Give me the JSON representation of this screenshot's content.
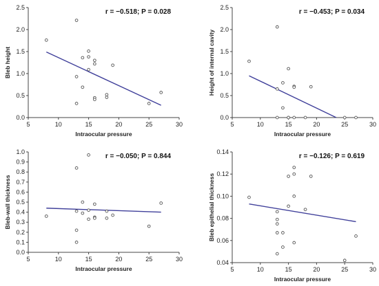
{
  "chart_data": [
    {
      "type": "scatter",
      "stat": "r = −0.518; P = 0.028",
      "xlabel": "Intraocular pressure",
      "ylabel": "Bleb height",
      "xlim": [
        5,
        30
      ],
      "ylim": [
        0,
        2.5
      ],
      "xticks": [
        5,
        10,
        15,
        20,
        25,
        30
      ],
      "yticks": [
        0.0,
        0.5,
        1.0,
        1.5,
        2.0,
        2.5
      ],
      "ytick_labels": [
        "0.0",
        "0.5",
        "1.0",
        "1.5",
        "2.0",
        "2.5"
      ],
      "points": [
        [
          8,
          1.76
        ],
        [
          13,
          2.21
        ],
        [
          13,
          0.93
        ],
        [
          13,
          0.32
        ],
        [
          14,
          1.36
        ],
        [
          14,
          0.69
        ],
        [
          15,
          1.51
        ],
        [
          15,
          1.09
        ],
        [
          15,
          1.38
        ],
        [
          16,
          1.3
        ],
        [
          16,
          1.22
        ],
        [
          16,
          0.45
        ],
        [
          16,
          0.41
        ],
        [
          18,
          0.52
        ],
        [
          18,
          0.46
        ],
        [
          19,
          1.19
        ],
        [
          25,
          0.32
        ],
        [
          27,
          0.57
        ]
      ],
      "fit": [
        [
          8,
          1.49
        ],
        [
          27,
          0.28
        ]
      ]
    },
    {
      "type": "scatter",
      "stat": "r = −0.453; P = 0.034",
      "xlabel": "Intraocular pressure",
      "ylabel": "Height of internal cavity",
      "xlim": [
        5,
        30
      ],
      "ylim": [
        0,
        2.5
      ],
      "xticks": [
        5,
        10,
        15,
        20,
        25,
        30
      ],
      "yticks": [
        0.0,
        0.5,
        1.0,
        1.5,
        2.0,
        2.5
      ],
      "ytick_labels": [
        "0.0",
        "0.5",
        "1.0",
        "1.5",
        "2.0",
        "2.5"
      ],
      "points": [
        [
          8,
          1.28
        ],
        [
          13,
          2.06
        ],
        [
          13,
          0.65
        ],
        [
          13,
          0.0
        ],
        [
          14,
          0.79
        ],
        [
          14,
          0.22
        ],
        [
          15,
          1.11
        ],
        [
          15,
          0.0
        ],
        [
          15,
          0.0
        ],
        [
          16,
          0.71
        ],
        [
          16,
          0.69
        ],
        [
          16,
          0.0
        ],
        [
          18,
          0.0
        ],
        [
          19,
          0.7
        ],
        [
          25,
          0.0
        ],
        [
          27,
          0.0
        ]
      ],
      "fit": [
        [
          8,
          0.95
        ],
        [
          23.5,
          0.0
        ]
      ]
    },
    {
      "type": "scatter",
      "stat": "r = −0.050; P = 0.844",
      "xlabel": "Intraocular pressure",
      "ylabel": "Bleb-wall thickness",
      "xlim": [
        5,
        30
      ],
      "ylim": [
        0,
        1.0
      ],
      "xticks": [
        5,
        10,
        15,
        20,
        25,
        30
      ],
      "yticks": [
        0.0,
        0.1,
        0.2,
        0.3,
        0.4,
        0.5,
        0.6,
        0.7,
        0.8,
        0.9,
        1.0
      ],
      "ytick_labels": [
        "0.0",
        "0.1",
        "0.2",
        "0.3",
        "0.4",
        "0.5",
        "0.6",
        "0.7",
        "0.8",
        "0.9",
        "1.0"
      ],
      "points": [
        [
          8,
          0.36
        ],
        [
          13,
          0.84
        ],
        [
          13,
          0.22
        ],
        [
          13,
          0.1
        ],
        [
          13,
          0.41
        ],
        [
          14,
          0.5
        ],
        [
          14,
          0.39
        ],
        [
          15,
          0.97
        ],
        [
          15,
          0.42
        ],
        [
          15,
          0.33
        ],
        [
          16,
          0.48
        ],
        [
          16,
          0.35
        ],
        [
          16,
          0.34
        ],
        [
          18,
          0.41
        ],
        [
          18,
          0.34
        ],
        [
          19,
          0.37
        ],
        [
          25,
          0.26
        ],
        [
          27,
          0.49
        ]
      ],
      "fit": [
        [
          8,
          0.44
        ],
        [
          27,
          0.4
        ]
      ]
    },
    {
      "type": "scatter",
      "stat": "r = −0.126; P = 0.619",
      "xlabel": "Intraocular pressure",
      "ylabel": "Bleb epithelial thickness",
      "xlim": [
        5,
        30
      ],
      "ylim": [
        0.04,
        0.14
      ],
      "xticks": [
        5,
        10,
        15,
        20,
        25,
        30
      ],
      "yticks": [
        0.04,
        0.06,
        0.08,
        0.1,
        0.12,
        0.14
      ],
      "ytick_labels": [
        "0.04",
        "0.06",
        "0.08",
        "0.10",
        "0.12",
        "0.14"
      ],
      "points": [
        [
          8,
          0.099
        ],
        [
          13,
          0.086
        ],
        [
          13,
          0.079
        ],
        [
          13,
          0.075
        ],
        [
          13,
          0.067
        ],
        [
          13,
          0.048
        ],
        [
          14,
          0.067
        ],
        [
          14,
          0.054
        ],
        [
          15,
          0.118
        ],
        [
          15,
          0.091
        ],
        [
          16,
          0.126
        ],
        [
          16,
          0.12
        ],
        [
          16,
          0.1
        ],
        [
          16,
          0.058
        ],
        [
          18,
          0.088
        ],
        [
          19,
          0.118
        ],
        [
          25,
          0.042
        ],
        [
          27,
          0.064
        ]
      ],
      "fit": [
        [
          8,
          0.093
        ],
        [
          27,
          0.077
        ]
      ]
    }
  ]
}
